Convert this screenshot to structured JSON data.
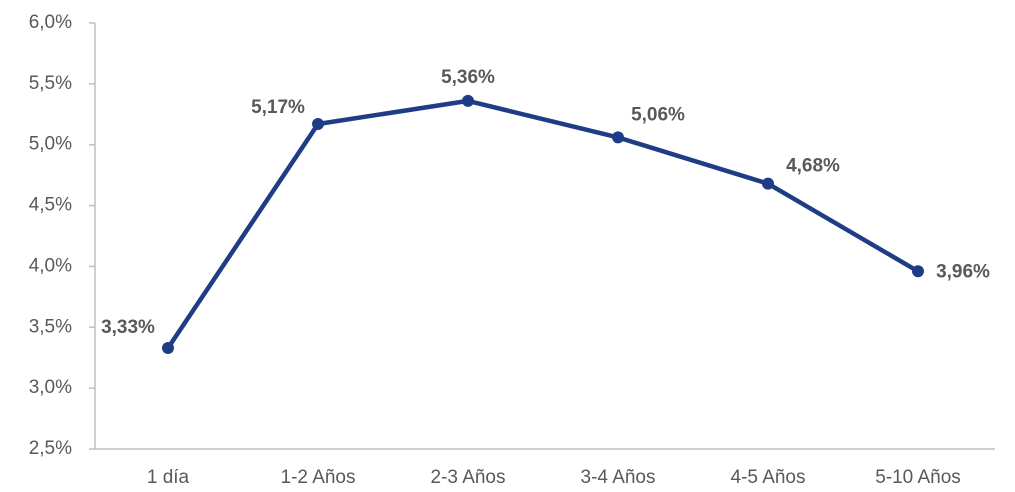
{
  "chart_data": {
    "type": "line",
    "categories": [
      "1 día",
      "1-2 Años",
      "2-3 Años",
      "3-4 Años",
      "4-5 Años",
      "5-10 Años"
    ],
    "values": [
      3.33,
      5.17,
      5.36,
      5.06,
      4.68,
      3.96
    ],
    "value_labels": [
      "3,33%",
      "5,17%",
      "5,36%",
      "5,06%",
      "4,68%",
      "3,96%"
    ],
    "color": "#1f3d86",
    "ylim": [
      2.5,
      6.0
    ],
    "yticks": [
      {
        "value": 2.5,
        "label": "2,5%"
      },
      {
        "value": 3.0,
        "label": "3,0%"
      },
      {
        "value": 3.5,
        "label": "3,5%"
      },
      {
        "value": 4.0,
        "label": "4,0%"
      },
      {
        "value": 4.5,
        "label": "4,5%"
      },
      {
        "value": 5.0,
        "label": "5,0%"
      },
      {
        "value": 5.5,
        "label": "5,5%"
      },
      {
        "value": 6.0,
        "label": "6,0%"
      }
    ],
    "grid": false
  }
}
